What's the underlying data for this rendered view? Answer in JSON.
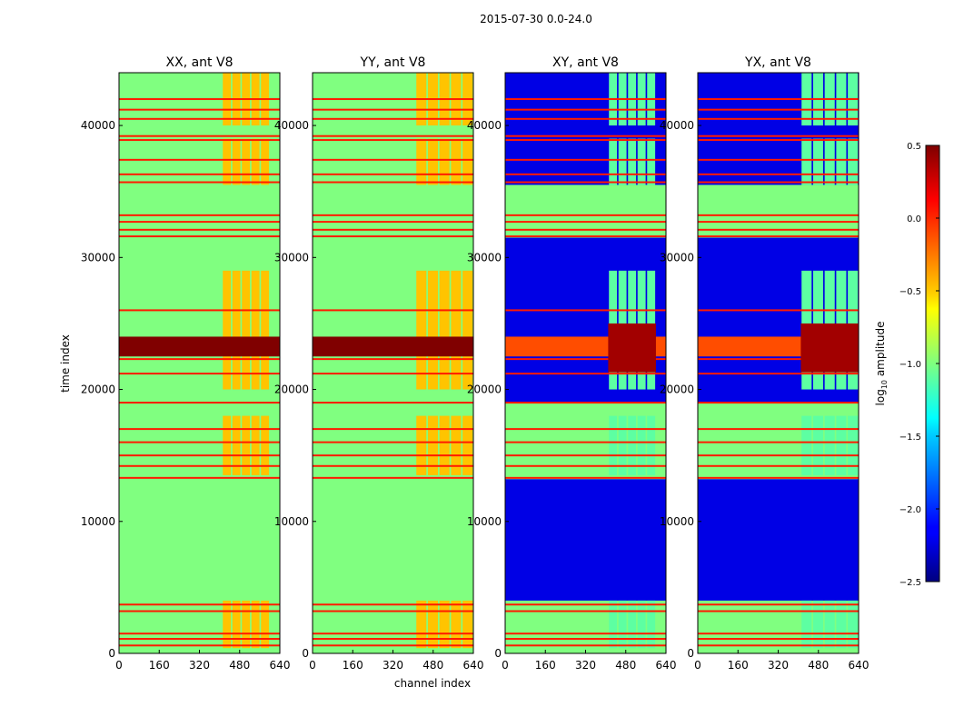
{
  "figure": {
    "suptitle": "2015-07-30 0.0-24.0",
    "xlabel": "channel index",
    "ylabel": "time index"
  },
  "chart_data": [
    {
      "type": "heatmap",
      "title": "XX, ant V8",
      "xlim": [
        0,
        640
      ],
      "ylim": [
        0,
        44000
      ],
      "xticks": [
        "0",
        "160",
        "320",
        "480",
        "640"
      ],
      "yticks": [
        "0",
        "10000",
        "20000",
        "30000",
        "40000"
      ],
      "background_level": -1.0,
      "active_channel_range": [
        410,
        600
      ]
    },
    {
      "type": "heatmap",
      "title": "YY, ant V8",
      "xlim": [
        0,
        640
      ],
      "ylim": [
        0,
        44000
      ],
      "xticks": [
        "0",
        "160",
        "320",
        "480",
        "640"
      ],
      "yticks": [
        "0",
        "10000",
        "20000",
        "30000",
        "40000"
      ],
      "background_level": -1.0,
      "active_channel_range": [
        410,
        640
      ]
    },
    {
      "type": "heatmap",
      "title": "XY, ant V8",
      "xlim": [
        0,
        640
      ],
      "ylim": [
        0,
        44000
      ],
      "xticks": [
        "0",
        "160",
        "320",
        "480",
        "640"
      ],
      "yticks": [
        "0",
        "10000",
        "20000",
        "30000",
        "40000"
      ],
      "background_level": -2.2,
      "active_channel_range": [
        410,
        600
      ]
    },
    {
      "type": "heatmap",
      "title": "YX, ant V8",
      "xlim": [
        0,
        640
      ],
      "ylim": [
        0,
        44000
      ],
      "xticks": [
        "0",
        "160",
        "320",
        "480",
        "640"
      ],
      "yticks": [
        "0",
        "10000",
        "20000",
        "30000",
        "40000"
      ],
      "background_level": -2.2,
      "active_channel_range": [
        410,
        640
      ]
    }
  ],
  "colorbar": {
    "label": "log10 amplitude",
    "range": [
      -2.5,
      0.5
    ],
    "ticks": [
      "0.5",
      "0.0",
      "−0.5",
      "−1.0",
      "−1.5",
      "−2.0",
      "−2.5"
    ]
  },
  "data_regions": {
    "flagged_blocks": [
      [
        0,
        4000
      ],
      [
        13200,
        19000
      ],
      [
        31500,
        35500
      ]
    ],
    "strong_band": [
      22500,
      24000
    ],
    "red_lines": [
      600,
      1100,
      1500,
      3200,
      3700,
      13300,
      14200,
      15000,
      16000,
      17000,
      19000,
      21200,
      22300,
      26000,
      31600,
      32100,
      32700,
      33200,
      35700,
      36300,
      37400,
      38900,
      39200,
      40500,
      41200,
      42000
    ]
  }
}
